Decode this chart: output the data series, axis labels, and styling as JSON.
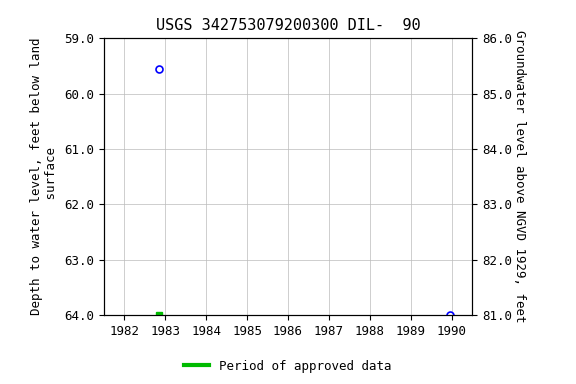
{
  "title": "USGS 342753079200300 DIL-  90",
  "ylabel_left": "Depth to water level, feet below land\n surface",
  "ylabel_right": "Groundwater level above NGVD 1929, feet",
  "ylim_left": [
    64.0,
    59.0
  ],
  "ylim_right": [
    81.0,
    86.0
  ],
  "xlim": [
    1981.5,
    1990.5
  ],
  "xticks": [
    1982,
    1983,
    1984,
    1985,
    1986,
    1987,
    1988,
    1989,
    1990
  ],
  "yticks_left": [
    59.0,
    60.0,
    61.0,
    62.0,
    63.0,
    64.0
  ],
  "yticks_right": [
    86.0,
    85.0,
    84.0,
    83.0,
    82.0,
    81.0
  ],
  "blue_circle_points": [
    [
      1982.85,
      59.55
    ],
    [
      1989.95,
      64.0
    ]
  ],
  "green_square_point": [
    1982.85,
    64.0
  ],
  "blue_circle_color": "#0000ff",
  "green_square_color": "#00bb00",
  "grid_color": "#bbbbbb",
  "background_color": "#ffffff",
  "title_fontsize": 11,
  "axis_label_fontsize": 9,
  "tick_fontsize": 9,
  "legend_label": "Period of approved data",
  "legend_color": "#00bb00"
}
